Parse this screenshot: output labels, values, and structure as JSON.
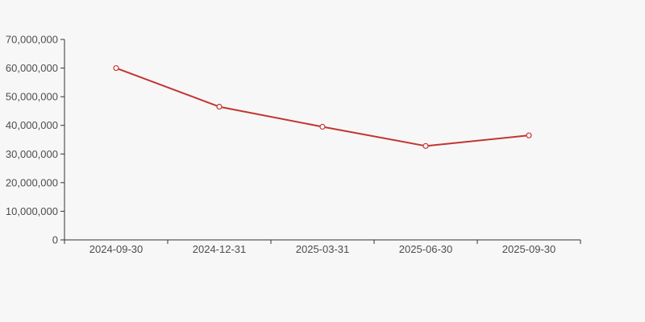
{
  "page": {
    "background": "#f7f7f7",
    "title": ""
  },
  "chart_data": {
    "type": "line",
    "title": "",
    "xlabel": "",
    "ylabel": "",
    "categories": [
      "2024-09-30",
      "2024-12-31",
      "2025-03-31",
      "2025-06-30",
      "2025-09-30"
    ],
    "series": [
      {
        "name": "series-1",
        "values": [
          60000000,
          46500000,
          39500000,
          32800000,
          36500000
        ],
        "color": "#c23531",
        "marker": "open-circle",
        "marker_fill": "#ffffff",
        "line_width": 2
      }
    ],
    "ylim": [
      0,
      70000000
    ],
    "y_ticks": [
      0,
      10000000,
      20000000,
      30000000,
      40000000,
      50000000,
      60000000,
      70000000
    ],
    "y_tick_labels": [
      "0",
      "10,000,000",
      "20,000,000",
      "30,000,000",
      "40,000,000",
      "50,000,000",
      "60,000,000",
      "70,000,000"
    ],
    "grid": false,
    "legend_position": "none",
    "axis_color": "#333333",
    "tick_label_color": "#4d4d4d"
  }
}
